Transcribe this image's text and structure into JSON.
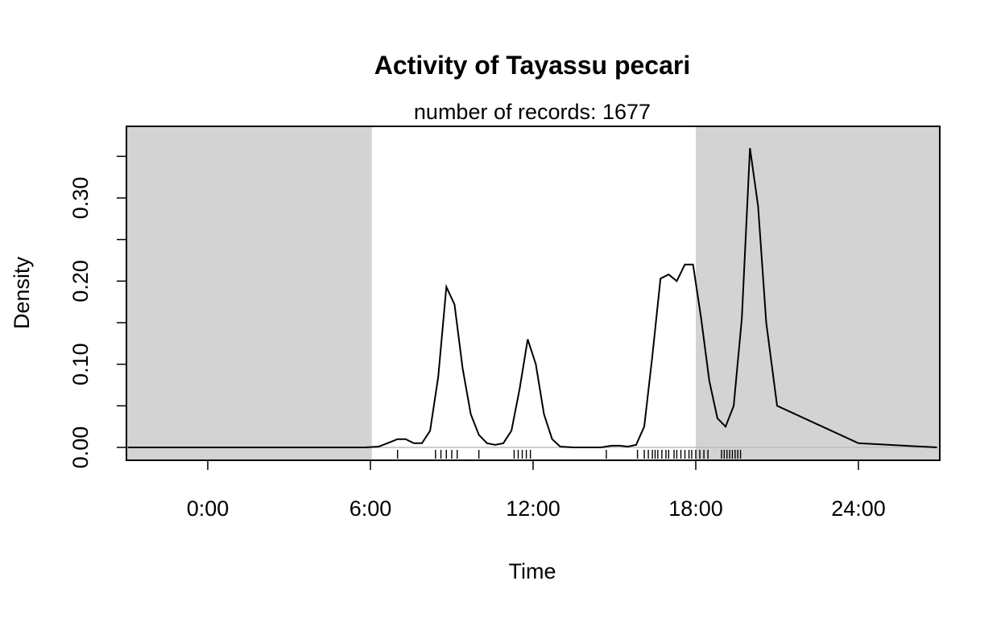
{
  "chart_data": {
    "type": "line",
    "title": "Activity of Tayassu pecari",
    "subtitle": "number of records: 1677",
    "xlabel": "Time",
    "ylabel": "Density",
    "xlim": [
      -3,
      27
    ],
    "ylim": [
      0,
      0.36
    ],
    "x_ticks": [
      0,
      6,
      12,
      18,
      24
    ],
    "x_tick_labels": [
      "0:00",
      "6:00",
      "12:00",
      "18:00",
      "24:00"
    ],
    "y_ticks": [
      0.0,
      0.05,
      0.1,
      0.15,
      0.2,
      0.25,
      0.3,
      0.35
    ],
    "y_tick_labels": [
      "0.00",
      "",
      "0.10",
      "",
      "0.20",
      "",
      "0.30",
      ""
    ],
    "night_shading": {
      "color": "#d3d3d3",
      "intervals": [
        [
          -3,
          6.05
        ],
        [
          18,
          27
        ]
      ]
    },
    "series": [
      {
        "color": "#000000",
        "x": [
          -2.95,
          0,
          3,
          5.8,
          6.3,
          6.7,
          7.0,
          7.3,
          7.6,
          7.9,
          8.2,
          8.5,
          8.8,
          9.1,
          9.4,
          9.7,
          10.0,
          10.3,
          10.6,
          10.9,
          11.2,
          11.5,
          11.8,
          12.1,
          12.4,
          12.7,
          13.0,
          13.5,
          14.0,
          14.5,
          14.9,
          15.2,
          15.5,
          15.8,
          16.1,
          16.4,
          16.7,
          17.0,
          17.3,
          17.6,
          17.9,
          18.2,
          18.5,
          18.8,
          19.1,
          19.4,
          19.7,
          20.0,
          20.3,
          20.6,
          21.0,
          24.0,
          26.9
        ],
        "y": [
          0,
          0,
          0,
          0,
          0.001,
          0.006,
          0.01,
          0.01,
          0.005,
          0.005,
          0.02,
          0.085,
          0.193,
          0.172,
          0.095,
          0.04,
          0.015,
          0.005,
          0.003,
          0.005,
          0.02,
          0.07,
          0.13,
          0.1,
          0.04,
          0.01,
          0.001,
          0,
          0,
          0,
          0.002,
          0.002,
          0.001,
          0.003,
          0.025,
          0.11,
          0.203,
          0.208,
          0.2,
          0.22,
          0.22,
          0.155,
          0.08,
          0.035,
          0.025,
          0.05,
          0.155,
          0.36,
          0.29,
          0.15,
          0.05,
          0.005,
          0
        ]
      }
    ],
    "rug_times": [
      7.0,
      8.4,
      8.6,
      8.8,
      9.0,
      9.2,
      10.0,
      11.3,
      11.45,
      11.6,
      11.75,
      11.9,
      14.7,
      15.85,
      16.1,
      16.25,
      16.4,
      16.5,
      16.6,
      16.75,
      16.9,
      17.0,
      17.2,
      17.3,
      17.45,
      17.6,
      17.75,
      17.85,
      18.0,
      18.15,
      18.3,
      18.45,
      18.95,
      19.05,
      19.15,
      19.25,
      19.35,
      19.45,
      19.55,
      19.65
    ]
  }
}
